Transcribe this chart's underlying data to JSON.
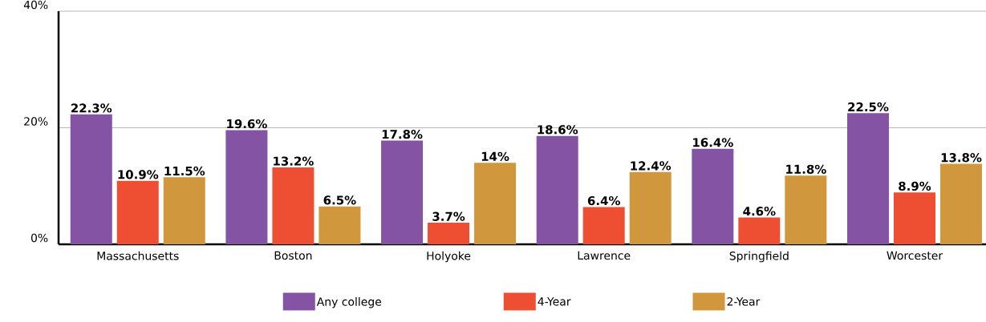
{
  "chart_data": {
    "type": "bar",
    "categories": [
      "Massachusetts",
      "Boston",
      "Holyoke",
      "Lawrence",
      "Springfield",
      "Worcester"
    ],
    "series": [
      {
        "name": "Any college",
        "color": "#8453a3",
        "values": [
          22.3,
          19.6,
          17.8,
          18.6,
          16.4,
          22.5
        ],
        "value_labels": [
          "22.3%",
          "19.6%",
          "17.8%",
          "18.6%",
          "16.4%",
          "22.5%"
        ]
      },
      {
        "name": "4-Year",
        "color": "#ee4f32",
        "values": [
          10.9,
          13.2,
          3.7,
          6.4,
          4.6,
          8.9
        ],
        "value_labels": [
          "10.9%",
          "13.2%",
          "3.7%",
          "6.4%",
          "4.6%",
          "8.9%"
        ]
      },
      {
        "name": "2-Year",
        "color": "#d0973c",
        "values": [
          11.5,
          6.5,
          14,
          12.4,
          11.8,
          13.8
        ],
        "value_labels": [
          "11.5%",
          "6.5%",
          "14%",
          "12.4%",
          "11.8%",
          "13.8%"
        ]
      }
    ],
    "ylim": [
      0,
      40
    ],
    "yticks": [
      {
        "value": 0,
        "label": "0%"
      },
      {
        "value": 20,
        "label": "20%"
      },
      {
        "value": 40,
        "label": "40%"
      }
    ],
    "grid": "y",
    "legend": "bottom"
  }
}
